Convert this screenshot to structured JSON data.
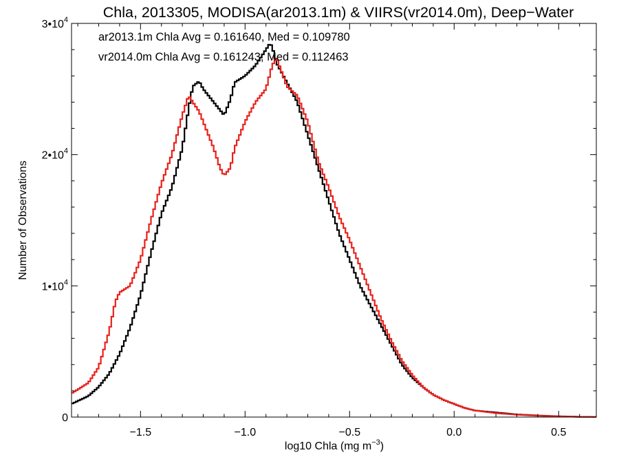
{
  "chart_data": {
    "type": "line",
    "title": "Chla, 2013305, MODISA(ar2013.1m) & VIIRS(vr2014.0m), Deep−Water",
    "xlabel": {
      "main": "log10 Chla (mg m",
      "sup": "−3",
      "close": ")"
    },
    "ylabel": "Number of Observations",
    "xlim": [
      -1.83,
      0.68
    ],
    "ylim": [
      0,
      30000
    ],
    "x_ticks": [
      {
        "v": -1.5,
        "label": "−1.5"
      },
      {
        "v": -1.0,
        "label": "−1.0"
      },
      {
        "v": -0.5,
        "label": "−0.5"
      },
      {
        "v": 0.0,
        "label": "0.0"
      },
      {
        "v": 0.5,
        "label": "0.5"
      }
    ],
    "y_ticks": [
      {
        "v": 0,
        "base": "0",
        "exp": ""
      },
      {
        "v": 10000,
        "base": "1•10",
        "exp": "4"
      },
      {
        "v": 20000,
        "base": "2•10",
        "exp": "4"
      },
      {
        "v": 30000,
        "base": "3•10",
        "exp": "4"
      }
    ],
    "legend": "top-left",
    "annotations": [
      {
        "text": "ar2013.1m Chla Avg = 0.161640, Med = 0.109780",
        "color": "#000000"
      },
      {
        "text": "vr2014.0m Chla Avg = 0.161243, Med = 0.112463",
        "color": "#e8201b"
      }
    ],
    "series": [
      {
        "color": "#000000",
        "x": [
          -1.83,
          -1.75,
          -1.7,
          -1.65,
          -1.6,
          -1.55,
          -1.5,
          -1.45,
          -1.4,
          -1.35,
          -1.3,
          -1.27,
          -1.25,
          -1.22,
          -1.2,
          -1.15,
          -1.1,
          -1.07,
          -1.05,
          -1.0,
          -0.95,
          -0.9,
          -0.88,
          -0.87,
          -0.85,
          -0.8,
          -0.75,
          -0.7,
          -0.65,
          -0.6,
          -0.55,
          -0.5,
          -0.45,
          -0.4,
          -0.35,
          -0.3,
          -0.25,
          -0.2,
          -0.15,
          -0.1,
          -0.05,
          0.0,
          0.05,
          0.1,
          0.2,
          0.3,
          0.4,
          0.5,
          0.6,
          0.68
        ],
        "y": [
          1000,
          1600,
          2300,
          3300,
          4800,
          6800,
          9300,
          12500,
          15500,
          17500,
          20500,
          23500,
          25200,
          25600,
          25000,
          24000,
          23000,
          24200,
          25500,
          26000,
          26800,
          28000,
          28500,
          28200,
          27000,
          25500,
          24000,
          21500,
          19000,
          16500,
          14000,
          12000,
          10000,
          8500,
          7000,
          5500,
          4000,
          3000,
          2300,
          1700,
          1300,
          1000,
          700,
          500,
          350,
          200,
          120,
          60,
          20,
          10
        ]
      },
      {
        "color": "#e8201b",
        "x": [
          -1.83,
          -1.75,
          -1.7,
          -1.65,
          -1.62,
          -1.6,
          -1.55,
          -1.5,
          -1.45,
          -1.4,
          -1.35,
          -1.3,
          -1.27,
          -1.25,
          -1.22,
          -1.2,
          -1.15,
          -1.12,
          -1.1,
          -1.07,
          -1.05,
          -1.0,
          -0.95,
          -0.9,
          -0.87,
          -0.85,
          -0.8,
          -0.75,
          -0.7,
          -0.65,
          -0.6,
          -0.55,
          -0.5,
          -0.45,
          -0.4,
          -0.35,
          -0.3,
          -0.25,
          -0.2,
          -0.15,
          -0.1,
          -0.05,
          0.0,
          0.05,
          0.1,
          0.2,
          0.3,
          0.4,
          0.5,
          0.6,
          0.68
        ],
        "y": [
          1800,
          2600,
          3800,
          6500,
          8800,
          9500,
          10000,
          12000,
          15000,
          17800,
          20000,
          23000,
          24500,
          24000,
          23300,
          22500,
          20500,
          19000,
          18400,
          19000,
          20500,
          22500,
          24000,
          25000,
          26800,
          27400,
          25200,
          24500,
          22500,
          19500,
          17500,
          15300,
          13500,
          11500,
          9500,
          7500,
          5800,
          4300,
          3200,
          2300,
          1700,
          1300,
          1000,
          700,
          500,
          300,
          180,
          100,
          50,
          20,
          10
        ]
      }
    ]
  }
}
